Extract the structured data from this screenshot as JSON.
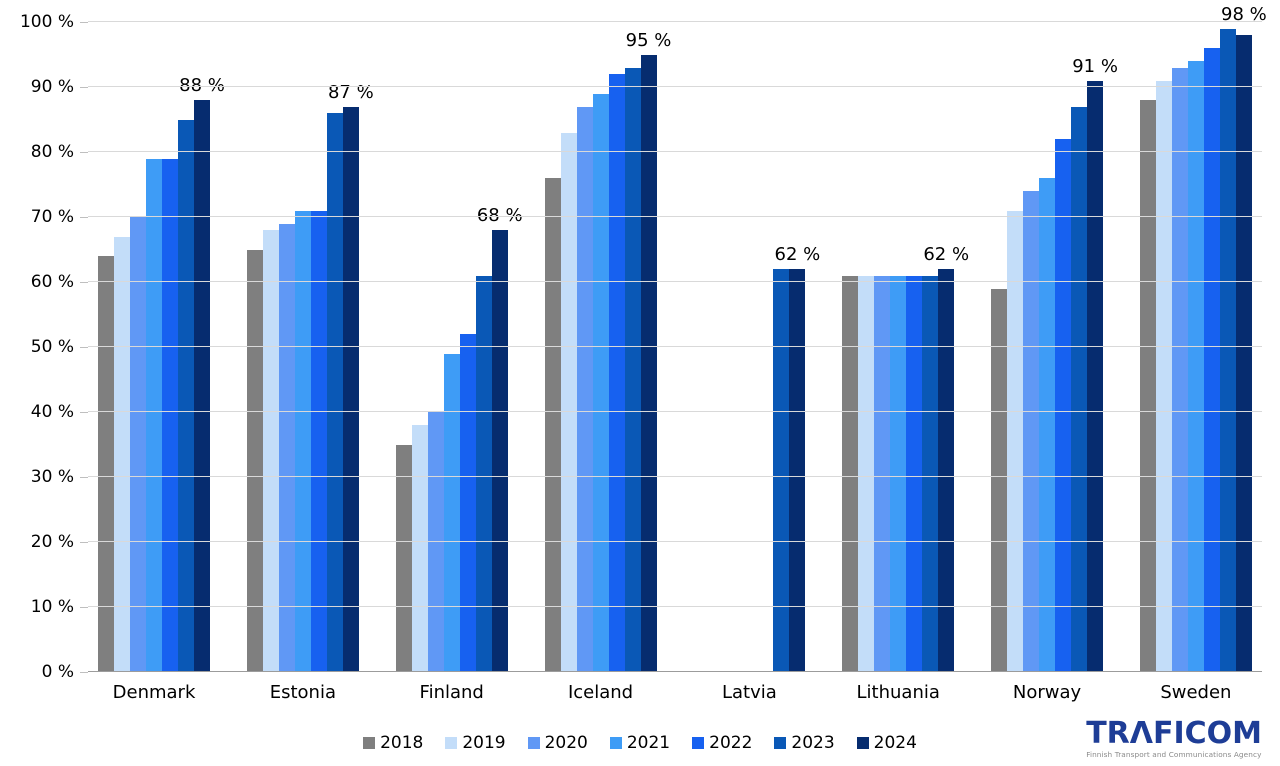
{
  "chart_data": {
    "type": "bar",
    "title": "",
    "categories": [
      "Denmark",
      "Estonia",
      "Finland",
      "Iceland",
      "Latvia",
      "Lithuania",
      "Norway",
      "Sweden"
    ],
    "series": [
      {
        "name": "2018",
        "color": "#7F7F7F",
        "values": [
          64,
          65,
          35,
          76,
          null,
          61,
          59,
          88
        ]
      },
      {
        "name": "2019",
        "color": "#C3DDF9",
        "values": [
          67,
          68,
          38,
          83,
          null,
          61,
          71,
          91
        ]
      },
      {
        "name": "2020",
        "color": "#6098F5",
        "values": [
          70,
          69,
          40,
          87,
          null,
          61,
          74,
          93
        ]
      },
      {
        "name": "2021",
        "color": "#3E9CF6",
        "values": [
          79,
          71,
          49,
          89,
          null,
          61,
          76,
          94
        ]
      },
      {
        "name": "2022",
        "color": "#1761F0",
        "values": [
          79,
          71,
          52,
          92,
          null,
          61,
          82,
          96
        ]
      },
      {
        "name": "2023",
        "color": "#0A58B6",
        "values": [
          85,
          86,
          61,
          93,
          62,
          61,
          87,
          99
        ]
      },
      {
        "name": "2024",
        "color": "#062C6F",
        "values": [
          88,
          87,
          68,
          95,
          62,
          62,
          91,
          98
        ]
      }
    ],
    "bar_labels": [
      "88 %",
      "87 %",
      "68 %",
      "95 %",
      "62 %",
      "62 %",
      "91 %",
      "98 %"
    ],
    "xlabel": "",
    "ylabel": "",
    "ylim": [
      0,
      100
    ],
    "ytick_step": 10,
    "ytick_labels": [
      "0 %",
      "10 %",
      "20 %",
      "30 %",
      "40 %",
      "50 %",
      "60 %",
      "70 %",
      "80 %",
      "90 %",
      "100 %"
    ],
    "grid": true,
    "legend_position": "bottom"
  },
  "logo": {
    "brand": "TRAFICOM",
    "brand_display": "TRΛFICOM",
    "tagline": "Finnish Transport and Communications Agency"
  }
}
